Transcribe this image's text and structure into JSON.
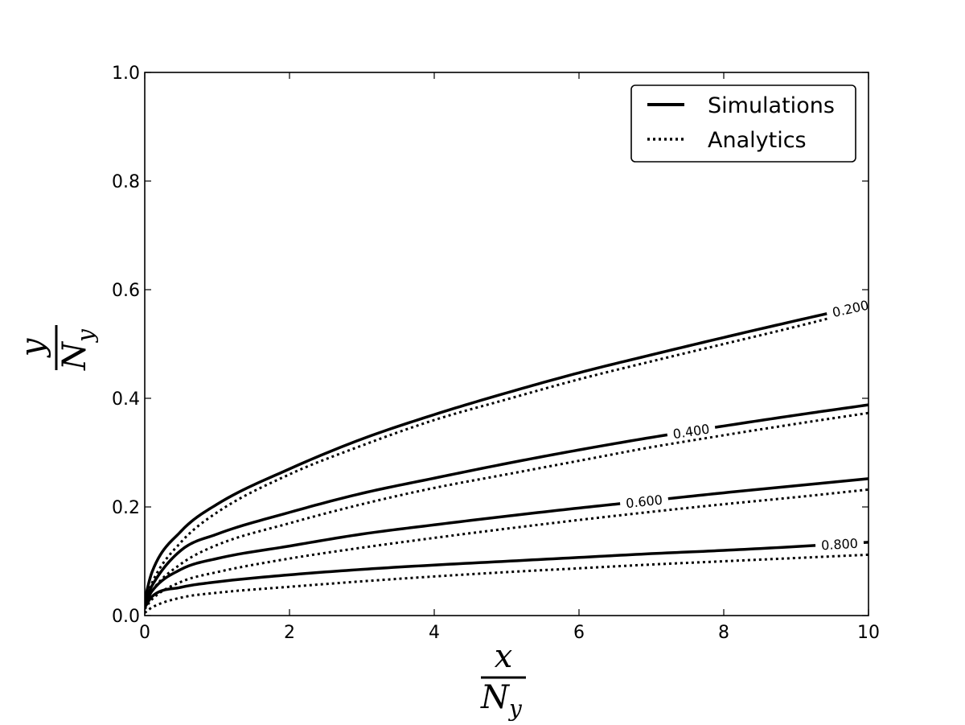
{
  "chart_data": {
    "type": "line",
    "xlabel": {
      "numerator": "x",
      "denominator_base": "N",
      "denominator_sub": "y"
    },
    "ylabel": {
      "numerator": "y",
      "denominator_base": "N",
      "denominator_sub": "y"
    },
    "xlim": [
      0,
      10
    ],
    "ylim": [
      0,
      1.0
    ],
    "xticks": [
      0,
      2,
      4,
      6,
      8,
      10
    ],
    "xtick_labels": [
      "0",
      "2",
      "4",
      "6",
      "8",
      "10"
    ],
    "yticks": [
      0,
      0.2,
      0.4,
      0.6,
      0.8,
      1.0
    ],
    "ytick_labels": [
      "0.0",
      "0.2",
      "0.4",
      "0.6",
      "0.8",
      "1.0"
    ],
    "grid": false,
    "legend": {
      "placement": "top-right",
      "entries": [
        {
          "label": "Simulations",
          "style": "solid"
        },
        {
          "label": "Analytics",
          "style": "dotted"
        }
      ]
    },
    "x": [
      0,
      0.1,
      0.5,
      1,
      2,
      3,
      4,
      5,
      6,
      7,
      8,
      9,
      10
    ],
    "series": [
      {
        "level": "0.200",
        "style": "solid",
        "values": [
          0.03,
          0.08,
          0.155,
          0.205,
          0.27,
          0.325,
          0.37,
          0.41,
          0.447,
          0.48,
          0.512,
          0.543,
          0.573
        ],
        "label_at_x": 9.75
      },
      {
        "level": "0.200",
        "style": "dotted",
        "values": [
          0.02,
          0.06,
          0.135,
          0.19,
          0.26,
          0.313,
          0.36,
          0.398,
          0.435,
          0.468,
          0.5,
          0.532,
          0.566
        ]
      },
      {
        "level": "0.400",
        "style": "solid",
        "values": [
          0.025,
          0.055,
          0.12,
          0.15,
          0.19,
          0.225,
          0.253,
          0.28,
          0.305,
          0.328,
          0.349,
          0.369,
          0.388
        ],
        "label_at_x": 7.55
      },
      {
        "level": "0.400",
        "style": "dotted",
        "values": [
          0.018,
          0.045,
          0.095,
          0.13,
          0.17,
          0.205,
          0.235,
          0.26,
          0.285,
          0.31,
          0.332,
          0.353,
          0.373
        ]
      },
      {
        "level": "0.600",
        "style": "solid",
        "values": [
          0.02,
          0.045,
          0.085,
          0.105,
          0.128,
          0.15,
          0.167,
          0.183,
          0.198,
          0.212,
          0.226,
          0.239,
          0.252
        ],
        "label_at_x": 6.9
      },
      {
        "level": "0.600",
        "style": "dotted",
        "values": [
          0.012,
          0.03,
          0.062,
          0.08,
          0.105,
          0.125,
          0.143,
          0.16,
          0.176,
          0.191,
          0.205,
          0.218,
          0.232
        ]
      },
      {
        "level": "0.800",
        "style": "solid",
        "values": [
          0.015,
          0.035,
          0.052,
          0.062,
          0.075,
          0.085,
          0.093,
          0.1,
          0.107,
          0.114,
          0.12,
          0.127,
          0.135
        ],
        "label_at_x": 9.6
      },
      {
        "level": "0.800",
        "style": "dotted",
        "values": [
          0.005,
          0.015,
          0.033,
          0.042,
          0.053,
          0.063,
          0.072,
          0.08,
          0.087,
          0.094,
          0.1,
          0.106,
          0.112
        ]
      }
    ]
  }
}
